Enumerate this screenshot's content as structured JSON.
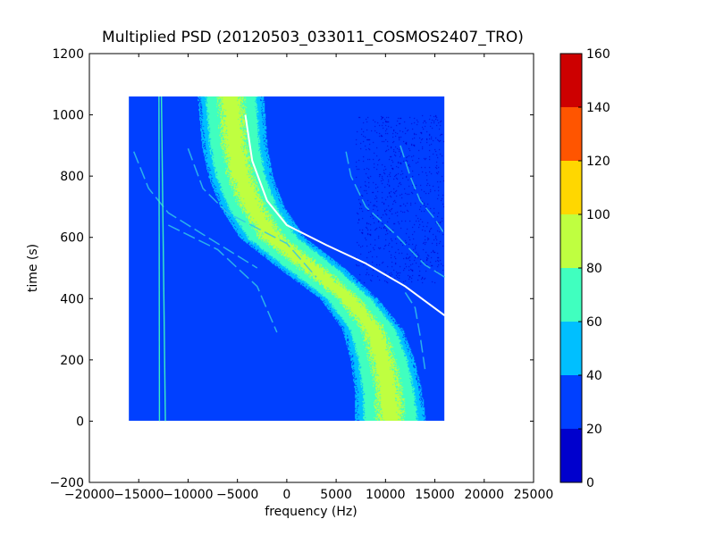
{
  "chart_data": {
    "type": "heatmap",
    "title": "Multiplied PSD (20120503_033011_COSMOS2407_TRO)",
    "xlabel": "frequency (Hz)",
    "ylabel": "time (s)",
    "xlim": [
      -20000,
      25000
    ],
    "ylim": [
      -200,
      1200
    ],
    "xticks": [
      -20000,
      -15000,
      -10000,
      -5000,
      0,
      5000,
      10000,
      15000,
      20000,
      25000
    ],
    "xtick_labels": [
      "−20000",
      "−15000",
      "−10000",
      "−5000",
      "0",
      "5000",
      "10000",
      "15000",
      "20000",
      "25000"
    ],
    "yticks": [
      -200,
      0,
      200,
      400,
      600,
      800,
      1000,
      1200
    ],
    "ytick_labels": [
      "−200",
      "0",
      "200",
      "400",
      "600",
      "800",
      "1000",
      "1200"
    ],
    "data_extent": {
      "freq": [
        -16000,
        16000
      ],
      "time": [
        0,
        1060
      ]
    },
    "background_level": 30,
    "main_band": {
      "center_freq_at_time": [
        [
          0,
          10500
        ],
        [
          100,
          10300
        ],
        [
          200,
          9700
        ],
        [
          300,
          8700
        ],
        [
          400,
          6300
        ],
        [
          500,
          2500
        ],
        [
          600,
          -1500
        ],
        [
          700,
          -3500
        ],
        [
          800,
          -4700
        ],
        [
          900,
          -5300
        ],
        [
          1060,
          -5700
        ]
      ],
      "half_width_hz": [
        [
          0,
          3200
        ],
        [
          400,
          2600
        ],
        [
          500,
          3000
        ],
        [
          700,
          2900
        ],
        [
          1060,
          3000
        ]
      ],
      "peak_level": 85
    },
    "white_line": [
      [
        16000,
        345
      ],
      [
        12000,
        440
      ],
      [
        8000,
        515
      ],
      [
        4000,
        575
      ],
      [
        0,
        640
      ],
      [
        -2000,
        720
      ],
      [
        -3500,
        850
      ],
      [
        -4200,
        1000
      ]
    ],
    "faint_lines": [
      [
        [
          -15500,
          880
        ],
        [
          -14000,
          760
        ],
        [
          -12000,
          680
        ],
        [
          -9000,
          620
        ],
        [
          -6000,
          560
        ],
        [
          -3000,
          500
        ]
      ],
      [
        [
          -10000,
          890
        ],
        [
          -8500,
          760
        ],
        [
          -6000,
          680
        ],
        [
          -3000,
          630
        ],
        [
          0,
          580
        ],
        [
          3000,
          470
        ]
      ],
      [
        [
          -12000,
          640
        ],
        [
          -7000,
          560
        ],
        [
          -3000,
          440
        ],
        [
          -1000,
          290
        ]
      ],
      [
        [
          6000,
          880
        ],
        [
          6500,
          800
        ],
        [
          8000,
          700
        ],
        [
          11000,
          610
        ],
        [
          14000,
          510
        ],
        [
          16000,
          470
        ]
      ],
      [
        [
          11500,
          900
        ],
        [
          12500,
          800
        ],
        [
          13500,
          720
        ],
        [
          15000,
          660
        ],
        [
          16000,
          610
        ]
      ],
      [
        [
          12000,
          420
        ],
        [
          13000,
          370
        ],
        [
          13500,
          280
        ],
        [
          14000,
          170
        ]
      ]
    ],
    "vertical_lines": [
      {
        "freq_top": -12700,
        "freq_bottom": -12300,
        "time": [
          0,
          1060
        ]
      },
      {
        "freq_top": -12950,
        "freq_bottom": -12900,
        "time": [
          0,
          1060
        ]
      }
    ],
    "colorbar": {
      "boundaries": [
        0,
        20,
        40,
        60,
        80,
        100,
        120,
        140,
        160
      ],
      "colors": [
        "#0000cd",
        "#0040ff",
        "#00bfff",
        "#40ffbf",
        "#bfff40",
        "#ffd700",
        "#ff5500",
        "#cd0000"
      ],
      "tick_labels": [
        "0",
        "20",
        "40",
        "60",
        "80",
        "100",
        "120",
        "140",
        "160"
      ]
    },
    "grid": false,
    "legend": "none"
  }
}
